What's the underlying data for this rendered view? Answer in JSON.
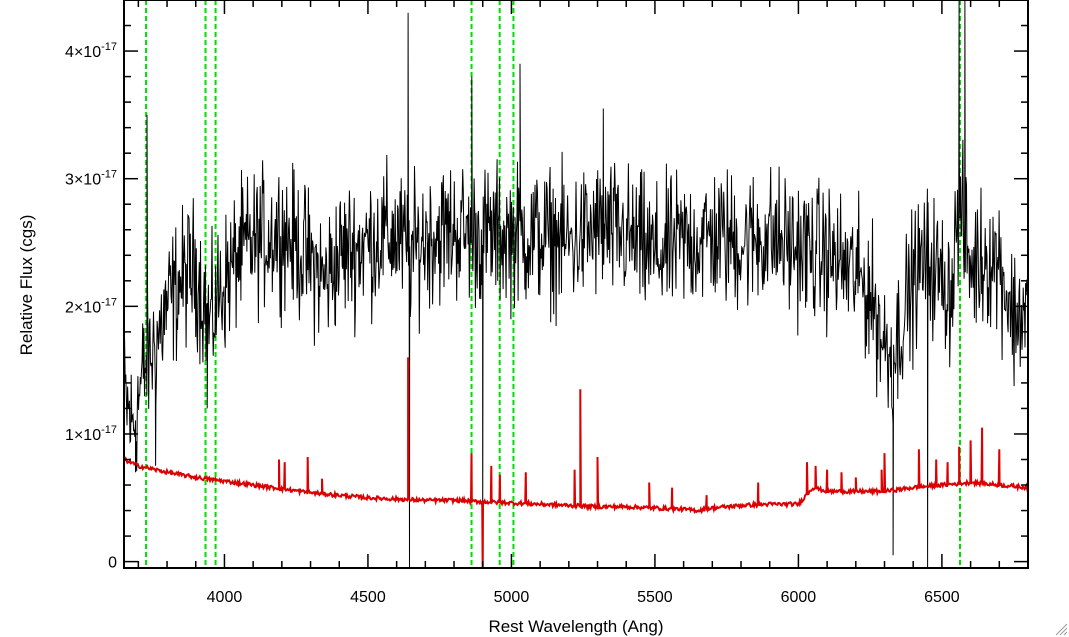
{
  "chart_data": {
    "type": "line",
    "title": "",
    "xlabel": "Rest Wavelength (Ang)",
    "ylabel": "Relative Flux (cgs)",
    "xlim": [
      3650,
      6800
    ],
    "ylim": [
      -5e-19,
      4.4e-17
    ],
    "x_ticks": [
      {
        "value": 4000,
        "label": "4000"
      },
      {
        "value": 4500,
        "label": "4500"
      },
      {
        "value": 5000,
        "label": "5000"
      },
      {
        "value": 5500,
        "label": "5500"
      },
      {
        "value": 6000,
        "label": "6000"
      },
      {
        "value": 6500,
        "label": "6500"
      }
    ],
    "y_ticks": [
      {
        "value": 0,
        "label": "0",
        "mantissa": "",
        "exponent": ""
      },
      {
        "value": 1e-17,
        "label": "",
        "mantissa": "1×10",
        "exponent": "-17"
      },
      {
        "value": 2e-17,
        "label": "",
        "mantissa": "2×10",
        "exponent": "-17"
      },
      {
        "value": 3e-17,
        "label": "",
        "mantissa": "3×10",
        "exponent": "-17"
      },
      {
        "value": 4e-17,
        "label": "",
        "mantissa": "4×10",
        "exponent": "-17"
      }
    ],
    "reference_lines": {
      "color": "#00dd00",
      "style": "dashed",
      "x": [
        3727,
        3934,
        3969,
        4861,
        4959,
        5007,
        6563
      ]
    },
    "series": [
      {
        "color": "#000000",
        "noise_amplitude_e17": 0.45,
        "x": [
          3650,
          3680,
          3720,
          3740,
          3760,
          3800,
          3850,
          3900,
          3950,
          3980,
          4050,
          4100,
          4200,
          4300,
          4350,
          4400,
          4450,
          4500,
          4550,
          4600,
          4650,
          4700,
          4800,
          4900,
          5000,
          5100,
          5200,
          5300,
          5400,
          5500,
          5600,
          5700,
          5800,
          5900,
          6000,
          6100,
          6200,
          6250,
          6300,
          6330,
          6360,
          6400,
          6450,
          6500,
          6530,
          6560,
          6600,
          6650,
          6700,
          6750,
          6800
        ],
        "y": [
          1.3e-17,
          1.05e-17,
          1.5e-17,
          1.6e-17,
          1.7e-17,
          2e-17,
          2.2e-17,
          2.3e-17,
          1.85e-17,
          2.1e-17,
          2.4e-17,
          2.5e-17,
          2.6e-17,
          2.35e-17,
          2.2e-17,
          2.4e-17,
          2.45e-17,
          2.5e-17,
          2.55e-17,
          2.55e-17,
          2.4e-17,
          2.55e-17,
          2.6e-17,
          2.55e-17,
          2.55e-17,
          2.55e-17,
          2.5e-17,
          2.6e-17,
          2.55e-17,
          2.4e-17,
          2.5e-17,
          2.55e-17,
          2.5e-17,
          2.55e-17,
          2.45e-17,
          2.4e-17,
          2.25e-17,
          2.1e-17,
          1.7e-17,
          1.6e-17,
          1.9e-17,
          2.2e-17,
          2.4e-17,
          2.2e-17,
          2.1e-17,
          2.8e-17,
          2.3e-17,
          2.4e-17,
          2.35e-17,
          1.9e-17,
          2e-17
        ],
        "spikes": [
          {
            "x": 3690,
            "y": 7e-18
          },
          {
            "x": 3730,
            "y": 3.5e-17
          },
          {
            "x": 3760,
            "y": 7.5e-18
          },
          {
            "x": 3940,
            "y": 1.2e-17
          },
          {
            "x": 4640,
            "y": 4.3e-17
          },
          {
            "x": 4645,
            "y": -5e-19
          },
          {
            "x": 4862,
            "y": 3.8e-17
          },
          {
            "x": 4900,
            "y": 2e-18
          },
          {
            "x": 5030,
            "y": 3.9e-17
          },
          {
            "x": 5320,
            "y": 3.55e-17
          },
          {
            "x": 6330,
            "y": 5e-19
          },
          {
            "x": 6450,
            "y": -5e-19
          },
          {
            "x": 6560,
            "y": 4.4e-17
          },
          {
            "x": 6580,
            "y": 4.4e-17
          },
          {
            "x": 6750,
            "y": 1.6e-17
          }
        ]
      },
      {
        "color": "#dd0000",
        "x": [
          3650,
          3700,
          3800,
          3900,
          4000,
          4100,
          4200,
          4300,
          4400,
          4500,
          4600,
          4700,
          4800,
          4900,
          5000,
          5100,
          5200,
          5300,
          5400,
          5500,
          5600,
          5650,
          5700,
          5800,
          5900,
          6000,
          6050,
          6100,
          6200,
          6300,
          6400,
          6500,
          6600,
          6700,
          6800
        ],
        "y": [
          8e-18,
          7.5e-18,
          7e-18,
          6.6e-18,
          6.3e-18,
          6e-18,
          5.7e-18,
          5.4e-18,
          5.2e-18,
          5e-18,
          4.9e-18,
          4.8e-18,
          4.8e-18,
          4.7e-18,
          4.6e-18,
          4.5e-18,
          4.4e-18,
          4.3e-18,
          4.3e-18,
          4.2e-18,
          4.1e-18,
          4e-18,
          4.2e-18,
          4.4e-18,
          4.5e-18,
          4.5e-18,
          5.8e-18,
          5.5e-18,
          5.5e-18,
          5.5e-18,
          5.8e-18,
          6e-18,
          6.2e-18,
          6e-18,
          5.8e-18
        ],
        "lines": [
          {
            "x": 4190,
            "y": 8e-18
          },
          {
            "x": 4210,
            "y": 7.8e-18
          },
          {
            "x": 4290,
            "y": 8.2e-18
          },
          {
            "x": 4340,
            "y": 6.5e-18
          },
          {
            "x": 4640,
            "y": 1.6e-17
          },
          {
            "x": 4861,
            "y": 8.5e-18
          },
          {
            "x": 4900,
            "y": -1e-18
          },
          {
            "x": 4930,
            "y": 7.5e-18
          },
          {
            "x": 4960,
            "y": 6.8e-18
          },
          {
            "x": 5050,
            "y": 7e-18
          },
          {
            "x": 5220,
            "y": 7.2e-18
          },
          {
            "x": 5240,
            "y": 1.35e-17
          },
          {
            "x": 5300,
            "y": 8.2e-18
          },
          {
            "x": 5480,
            "y": 6.2e-18
          },
          {
            "x": 5560,
            "y": 5.8e-18
          },
          {
            "x": 5680,
            "y": 5.2e-18
          },
          {
            "x": 5860,
            "y": 6.2e-18
          },
          {
            "x": 6030,
            "y": 7.8e-18
          },
          {
            "x": 6060,
            "y": 7.5e-18
          },
          {
            "x": 6100,
            "y": 7.2e-18
          },
          {
            "x": 6150,
            "y": 7e-18
          },
          {
            "x": 6200,
            "y": 6.6e-18
          },
          {
            "x": 6290,
            "y": 7.2e-18
          },
          {
            "x": 6300,
            "y": 8.5e-18
          },
          {
            "x": 6420,
            "y": 8.8e-18
          },
          {
            "x": 6480,
            "y": 8e-18
          },
          {
            "x": 6520,
            "y": 7.8e-18
          },
          {
            "x": 6560,
            "y": 9e-18
          },
          {
            "x": 6600,
            "y": 9.5e-18
          },
          {
            "x": 6640,
            "y": 1.05e-17
          },
          {
            "x": 6700,
            "y": 8.8e-18
          }
        ]
      }
    ]
  }
}
